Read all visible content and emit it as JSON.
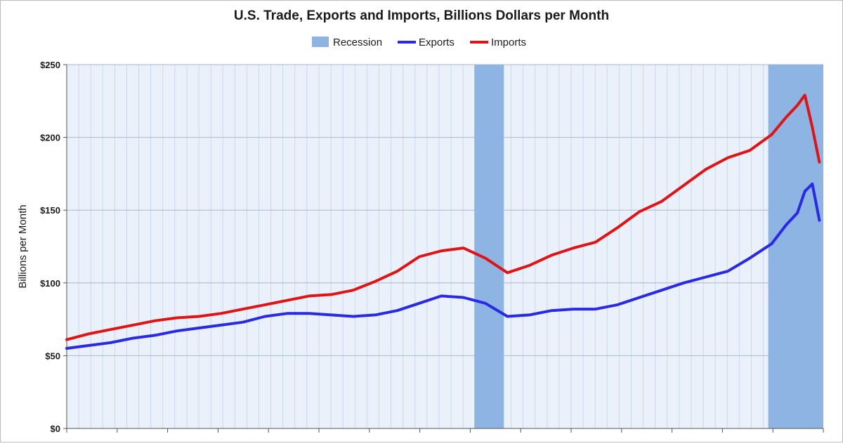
{
  "chart_data": {
    "type": "line",
    "title": "U.S. Trade, Exports and Imports, Billions Dollars per Month",
    "ylabel": "Billions per Month",
    "xlabel": "",
    "ylim": [
      0,
      250
    ],
    "yticks": [
      0,
      50,
      100,
      150,
      200,
      250
    ],
    "ytick_labels": [
      "$0",
      "$50",
      "$100",
      "$150",
      "$200",
      "$250"
    ],
    "x_range": [
      1992.0,
      2009.17
    ],
    "grid": true,
    "legend_position": "top",
    "legend": [
      {
        "name": "Recession",
        "kind": "band",
        "color": "#8DB4E2"
      },
      {
        "name": "Exports",
        "kind": "line",
        "color": "#2929E6"
      },
      {
        "name": "Imports",
        "kind": "line",
        "color": "#E01414"
      }
    ],
    "recessions": [
      {
        "start": 2001.25,
        "end": 2001.92
      },
      {
        "start": 2007.92,
        "end": 2009.17
      }
    ],
    "series": [
      {
        "name": "Exports",
        "color": "#2929E6",
        "x": [
          1992.0,
          1992.5,
          1993.0,
          1993.5,
          1994.0,
          1994.5,
          1995.0,
          1995.5,
          1996.0,
          1996.5,
          1997.0,
          1997.5,
          1998.0,
          1998.5,
          1999.0,
          1999.5,
          2000.0,
          2000.5,
          2001.0,
          2001.5,
          2002.0,
          2002.5,
          2003.0,
          2003.5,
          2004.0,
          2004.5,
          2005.0,
          2005.5,
          2006.0,
          2006.5,
          2007.0,
          2007.5,
          2008.0,
          2008.33,
          2008.58,
          2008.75,
          2008.92,
          2009.08
        ],
        "values": [
          55,
          57,
          59,
          62,
          64,
          67,
          69,
          71,
          73,
          77,
          79,
          79,
          78,
          77,
          78,
          81,
          86,
          91,
          90,
          86,
          77,
          78,
          81,
          82,
          82,
          85,
          90,
          95,
          100,
          104,
          108,
          117,
          127,
          140,
          148,
          163,
          168,
          143
        ]
      },
      {
        "name": "Imports",
        "color": "#E01414",
        "x": [
          1992.0,
          1992.5,
          1993.0,
          1993.5,
          1994.0,
          1994.5,
          1995.0,
          1995.5,
          1996.0,
          1996.5,
          1997.0,
          1997.5,
          1998.0,
          1998.5,
          1999.0,
          1999.5,
          2000.0,
          2000.5,
          2001.0,
          2001.5,
          2002.0,
          2002.5,
          2003.0,
          2003.5,
          2004.0,
          2004.5,
          2005.0,
          2005.5,
          2006.0,
          2006.5,
          2007.0,
          2007.5,
          2008.0,
          2008.33,
          2008.58,
          2008.75,
          2008.92,
          2009.08
        ],
        "values": [
          61,
          65,
          68,
          71,
          74,
          76,
          77,
          79,
          82,
          85,
          88,
          91,
          92,
          95,
          101,
          108,
          118,
          122,
          124,
          117,
          107,
          112,
          119,
          124,
          128,
          138,
          149,
          156,
          167,
          178,
          186,
          191,
          202,
          214,
          222,
          229,
          207,
          183
        ]
      }
    ]
  }
}
